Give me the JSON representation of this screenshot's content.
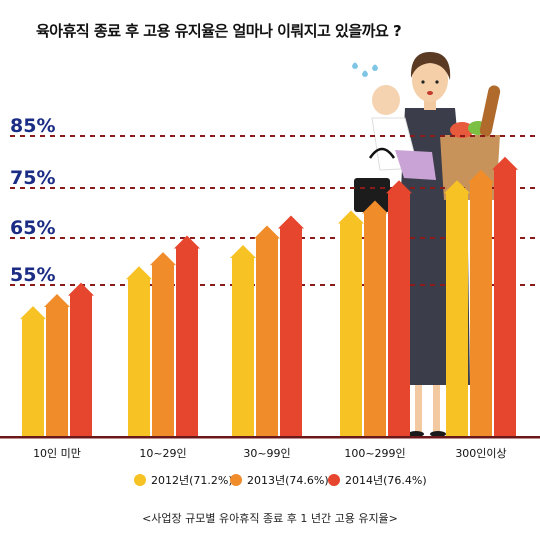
{
  "title": "육아휴직 종료 후 고용 유지율은 얼마나 이뤄지고 있을까요 ?",
  "source_note": "<사업장 규모별 유아휴직 종료 후 1 년간 고용 유지율>",
  "colors": {
    "2012": "#f7c224",
    "2013": "#f08c2a",
    "2014": "#e6452e",
    "gridline": "#8b1a1a",
    "ylabel": "#1b2c84",
    "baseline": "#6d1818"
  },
  "chart_data": {
    "type": "bar",
    "title": "육아휴직 종료 후 고용 유지율은 얼마나 이뤄지고 있을까요 ?",
    "categories": [
      "10인 미만",
      "10~29인",
      "30~99인",
      "100~299인",
      "300인이상"
    ],
    "series": [
      {
        "name": "2012년(71.2%)",
        "values": [
          51.5,
          59.0,
          63.5,
          70.5,
          76.5
        ]
      },
      {
        "name": "2013년(74.6%)",
        "values": [
          53.5,
          62.0,
          67.5,
          72.5,
          78.5
        ]
      },
      {
        "name": "2014년(76.4%)",
        "values": [
          55.5,
          65.5,
          69.5,
          76.5,
          81.0
        ]
      }
    ],
    "yticks": [
      "85%",
      "75%",
      "65%",
      "55%"
    ],
    "ytick_values": [
      85,
      75,
      65,
      55
    ],
    "ylim": [
      30,
      90
    ],
    "grid": "dashed at tick values",
    "legend": "bottom-center",
    "xlabel": "",
    "ylabel": ""
  }
}
